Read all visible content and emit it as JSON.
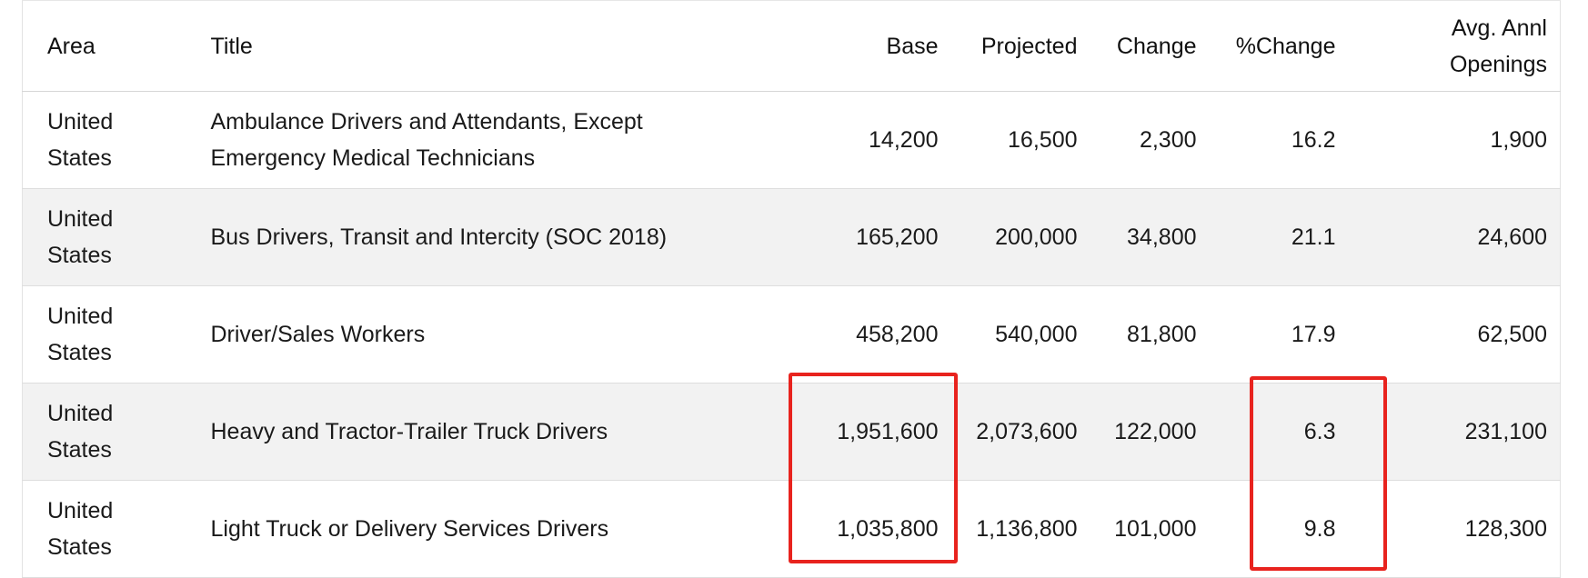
{
  "table": {
    "columns": [
      "Area",
      "Title",
      "Base",
      "Projected",
      "Change",
      "%Change",
      "Avg. Annl Openings"
    ],
    "rows": [
      [
        "United States",
        "Ambulance Drivers and Attendants, Except Emergency Medical Technicians",
        "14,200",
        "16,500",
        "2,300",
        "16.2",
        "1,900"
      ],
      [
        "United States",
        "Bus Drivers, Transit and Intercity (SOC 2018)",
        "165,200",
        "200,000",
        "34,800",
        "21.1",
        "24,600"
      ],
      [
        "United States",
        "Driver/Sales Workers",
        "458,200",
        "540,000",
        "81,800",
        "17.9",
        "62,500"
      ],
      [
        "United States",
        "Heavy and Tractor-Trailer Truck Drivers",
        "1,951,600",
        "2,073,600",
        "122,000",
        "6.3",
        "231,100"
      ],
      [
        "United States",
        "Light Truck or Delivery Services Drivers",
        "1,035,800",
        "1,136,800",
        "101,000",
        "9.8",
        "128,300"
      ]
    ]
  }
}
